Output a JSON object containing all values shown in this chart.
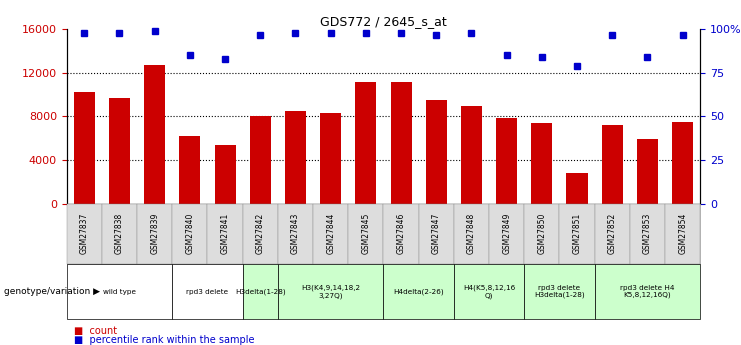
{
  "title": "GDS772 / 2645_s_at",
  "samples": [
    "GSM27837",
    "GSM27838",
    "GSM27839",
    "GSM27840",
    "GSM27841",
    "GSM27842",
    "GSM27843",
    "GSM27844",
    "GSM27845",
    "GSM27846",
    "GSM27847",
    "GSM27848",
    "GSM27849",
    "GSM27850",
    "GSM27851",
    "GSM27852",
    "GSM27853",
    "GSM27854"
  ],
  "counts": [
    10200,
    9700,
    12700,
    6200,
    5400,
    8000,
    8500,
    8300,
    11200,
    11200,
    9500,
    9000,
    7900,
    7400,
    2800,
    7200,
    5900,
    7500
  ],
  "percentile": [
    98,
    98,
    99,
    85,
    83,
    97,
    98,
    98,
    98,
    98,
    97,
    98,
    85,
    84,
    79,
    97,
    84,
    97
  ],
  "bar_color": "#cc0000",
  "dot_color": "#0000cc",
  "ylim_left": [
    0,
    16000
  ],
  "ylim_right": [
    0,
    100
  ],
  "yticks_left": [
    0,
    4000,
    8000,
    12000,
    16000
  ],
  "yticks_right": [
    0,
    25,
    50,
    75,
    100
  ],
  "yticklabels_right": [
    "0",
    "25",
    "50",
    "75",
    "100%"
  ],
  "genotype_groups": [
    {
      "label": "wild type",
      "start": 0,
      "end": 3,
      "color": "#ffffff"
    },
    {
      "label": "rpd3 delete",
      "start": 3,
      "end": 5,
      "color": "#ffffff"
    },
    {
      "label": "H3delta(1-28)",
      "start": 5,
      "end": 6,
      "color": "#ccffcc"
    },
    {
      "label": "H3(K4,9,14,18,2\n3,27Q)",
      "start": 6,
      "end": 9,
      "color": "#ccffcc"
    },
    {
      "label": "H4delta(2-26)",
      "start": 9,
      "end": 11,
      "color": "#ccffcc"
    },
    {
      "label": "H4(K5,8,12,16\nQ)",
      "start": 11,
      "end": 13,
      "color": "#ccffcc"
    },
    {
      "label": "rpd3 delete\nH3delta(1-28)",
      "start": 13,
      "end": 15,
      "color": "#ccffcc"
    },
    {
      "label": "rpd3 delete H4\nK5,8,12,16Q)",
      "start": 15,
      "end": 18,
      "color": "#ccffcc"
    }
  ],
  "legend_count_color": "#cc0000",
  "legend_dot_color": "#0000cc",
  "genotype_label": "genotype/variation"
}
